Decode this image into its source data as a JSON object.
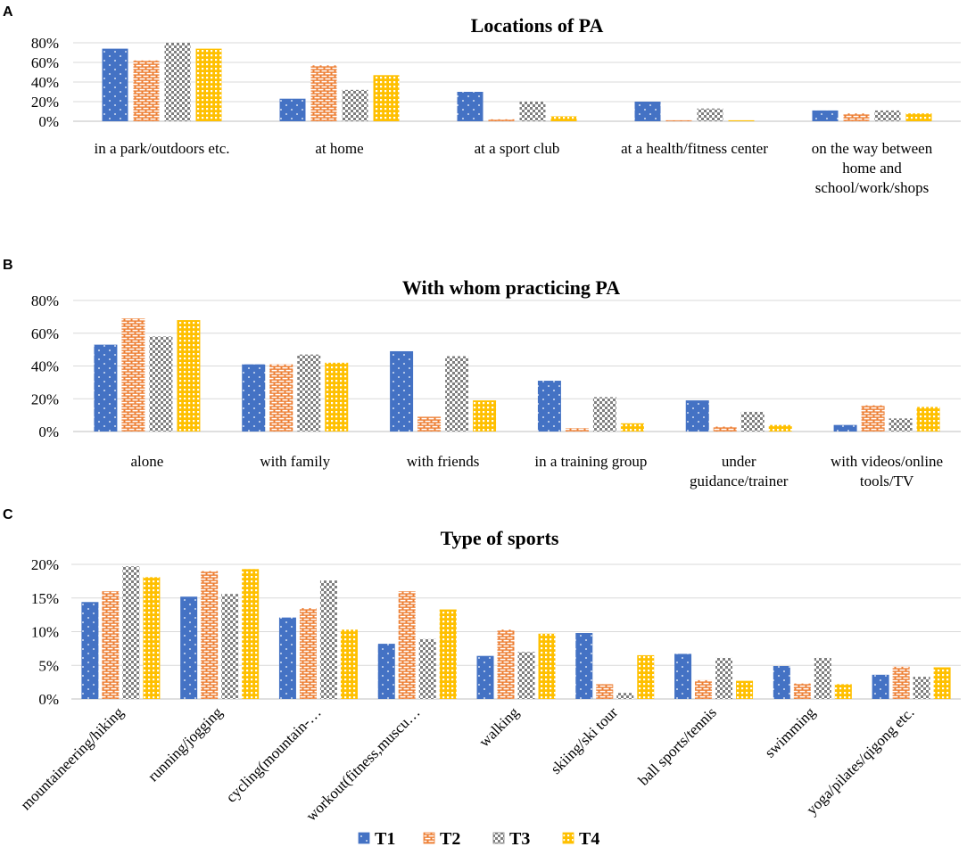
{
  "legend": {
    "series": [
      {
        "name": "T1",
        "color": "#4472C4",
        "pattern": "dots"
      },
      {
        "name": "T2",
        "color": "#ED7D31",
        "pattern": "bricks"
      },
      {
        "name": "T3",
        "color": "#7F7F7F",
        "pattern": "checker"
      },
      {
        "name": "T4",
        "color": "#FFC000",
        "pattern": "grid"
      }
    ]
  },
  "chart_data": [
    {
      "panel_label": "A",
      "type": "bar",
      "title": "Locations of PA",
      "ylim": [
        0,
        0.8
      ],
      "yticks": [
        "0%",
        "20%",
        "40%",
        "60%",
        "80%"
      ],
      "categories": [
        [
          "in a park/outdoors etc."
        ],
        [
          "at home"
        ],
        [
          "at a sport club"
        ],
        [
          "at a health/fitness center"
        ],
        [
          "on the way between",
          "home and",
          "school/work/shops"
        ]
      ],
      "series": [
        {
          "name": "T1",
          "values": [
            0.74,
            0.23,
            0.3,
            0.2,
            0.11
          ]
        },
        {
          "name": "T2",
          "values": [
            0.62,
            0.57,
            0.02,
            0.01,
            0.08
          ]
        },
        {
          "name": "T3",
          "values": [
            0.8,
            0.32,
            0.2,
            0.13,
            0.11
          ]
        },
        {
          "name": "T4",
          "values": [
            0.74,
            0.47,
            0.05,
            0.01,
            0.08
          ]
        }
      ]
    },
    {
      "panel_label": "B",
      "type": "bar",
      "title": "With whom practicing PA",
      "ylim": [
        0,
        0.8
      ],
      "yticks": [
        "0%",
        "20%",
        "40%",
        "60%",
        "80%"
      ],
      "categories": [
        [
          "alone"
        ],
        [
          "with family"
        ],
        [
          "with friends"
        ],
        [
          "in a training group"
        ],
        [
          "under",
          "guidance/trainer"
        ],
        [
          "with videos/online",
          "tools/TV"
        ]
      ],
      "series": [
        {
          "name": "T1",
          "values": [
            0.53,
            0.41,
            0.49,
            0.31,
            0.19,
            0.04
          ]
        },
        {
          "name": "T2",
          "values": [
            0.69,
            0.41,
            0.09,
            0.02,
            0.03,
            0.16
          ]
        },
        {
          "name": "T3",
          "values": [
            0.58,
            0.47,
            0.46,
            0.21,
            0.12,
            0.08
          ]
        },
        {
          "name": "T4",
          "values": [
            0.68,
            0.42,
            0.19,
            0.05,
            0.04,
            0.15
          ]
        }
      ]
    },
    {
      "panel_label": "C",
      "type": "bar",
      "title": "Type of sports",
      "ylim": [
        0,
        0.2
      ],
      "yticks": [
        "0%",
        "5%",
        "10%",
        "15%",
        "20%"
      ],
      "rotated_labels": true,
      "categories": [
        [
          "mountaineering/hiking"
        ],
        [
          "running/jogging"
        ],
        [
          "cycling(mountain-…"
        ],
        [
          "workout(fitness,muscu…"
        ],
        [
          "walking"
        ],
        [
          "skiing/ski tour"
        ],
        [
          "ball sports/tennis"
        ],
        [
          "swimming"
        ],
        [
          "yoga/pilates/qigong etc."
        ]
      ],
      "series": [
        {
          "name": "T1",
          "values": [
            0.144,
            0.152,
            0.121,
            0.082,
            0.064,
            0.098,
            0.067,
            0.049,
            0.036
          ]
        },
        {
          "name": "T2",
          "values": [
            0.16,
            0.19,
            0.135,
            0.16,
            0.103,
            0.022,
            0.028,
            0.023,
            0.048
          ]
        },
        {
          "name": "T3",
          "values": [
            0.197,
            0.156,
            0.176,
            0.089,
            0.07,
            0.009,
            0.061,
            0.061,
            0.033
          ]
        },
        {
          "name": "T4",
          "values": [
            0.181,
            0.193,
            0.103,
            0.133,
            0.097,
            0.065,
            0.027,
            0.022,
            0.047
          ]
        }
      ]
    }
  ]
}
